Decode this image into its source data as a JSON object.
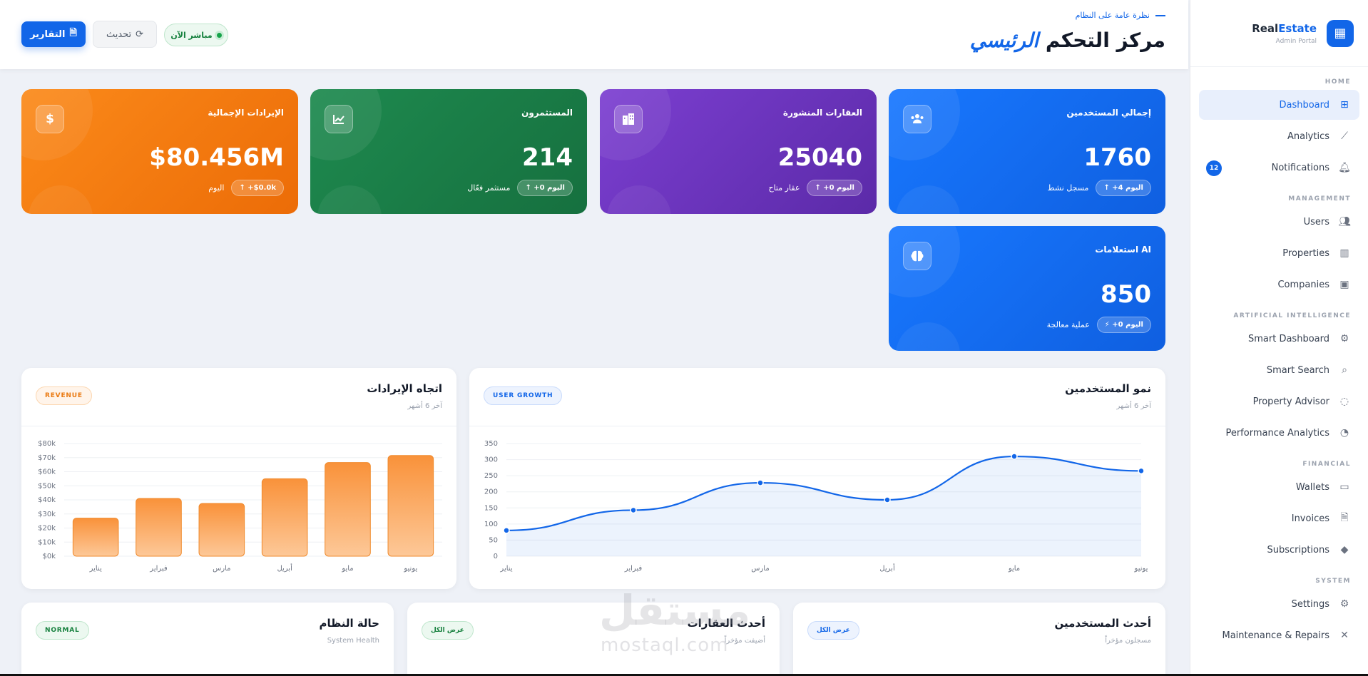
{
  "sidebar": {
    "brand_name_1": "Real",
    "brand_name_2": "Estate",
    "brand_sub": "Admin Portal",
    "sections": {
      "home": "HOME",
      "management": "MANAGEMENT",
      "ai": "ARTIFICIAL INTELLIGENCE",
      "financial": "FINANCIAL",
      "system": "SYSTEM"
    },
    "items": {
      "dashboard": "Dashboard",
      "analytics": "Analytics",
      "notifications": "Notifications",
      "notifications_count": "12",
      "users": "Users",
      "properties": "Properties",
      "companies": "Companies",
      "smart_dashboard": "Smart Dashboard",
      "smart_search": "Smart Search",
      "property_advisor": "Property Advisor",
      "performance_analytics": "Performance Analytics",
      "wallets": "Wallets",
      "invoices": "Invoices",
      "subscriptions": "Subscriptions",
      "settings": "Settings",
      "maintenance": "Maintenance & Repairs"
    }
  },
  "header": {
    "breadcrumb": "نظرة عامة على النظام",
    "title_main": "مركز التحكم",
    "title_accent": "الرئيسي",
    "reports_label": "التقارير",
    "refresh_label": "تحديث",
    "live_label": "مباشر الآن"
  },
  "stats": {
    "users": {
      "title": "إجمالي المستخدمين",
      "value": "1760",
      "pill": "↑ +4 اليوم",
      "note": "مسجل نشط"
    },
    "properties": {
      "title": "العقارات المنشورة",
      "value": "25040",
      "pill": "↑ +0 اليوم",
      "note": "عقار متاح"
    },
    "investors": {
      "title": "المستثمرون",
      "value": "214",
      "pill": "↑ +0 اليوم",
      "note": "مستثمر فعّال"
    },
    "revenue": {
      "title": "الإيرادات الإجمالية",
      "value": "$80.456M",
      "pill": "↑ +$0.0k",
      "note": "اليوم"
    },
    "ai": {
      "title": "استعلامات AI",
      "value": "850",
      "pill": "⚡ +0 اليوم",
      "note": "عملية معالجة"
    }
  },
  "user_growth": {
    "title": "نمو المستخدمين",
    "subtitle": "آخر 6 أشهر",
    "tag": "USER GROWTH"
  },
  "revenue_trend": {
    "title": "اتجاه الإيرادات",
    "subtitle": "آخر 6 أشهر",
    "tag": "REVENUE"
  },
  "bottom_cards": {
    "latest_users": {
      "title": "أحدث المستخدمين",
      "subtitle": "مسجلون مؤخراً",
      "tag": "عرض الكل"
    },
    "latest_properties": {
      "title": "أحدث العقارات",
      "subtitle": "أضيفت مؤخراً",
      "tag": "عرض الكل"
    },
    "system_status": {
      "title": "حالة النظام",
      "subtitle": "System Health",
      "tag": "NORMAL"
    }
  },
  "watermark": {
    "main": "مستقل",
    "sub": "mostaql.com"
  },
  "colors": {
    "accent": "#1266e8",
    "orange": "#fb8a1a",
    "purple": "#7c3fd1",
    "green": "#1e8a4f"
  },
  "chart_data": [
    {
      "type": "line",
      "title": "نمو المستخدمين",
      "categories": [
        "يناير",
        "فبراير",
        "مارس",
        "أبريل",
        "مايو",
        "يونيو"
      ],
      "values": [
        80,
        143,
        228,
        175,
        310,
        265
      ],
      "ylim": [
        0,
        350
      ],
      "yticks": [
        "0",
        "50",
        "100",
        "150",
        "200",
        "250",
        "300",
        "350"
      ],
      "grid": true
    },
    {
      "type": "bar",
      "title": "اتجاه الإيرادات",
      "categories": [
        "يناير",
        "فبراير",
        "مارس",
        "أبريل",
        "مايو",
        "يونيو"
      ],
      "values": [
        27000,
        41000,
        37500,
        55000,
        66500,
        71500
      ],
      "ylim": [
        0,
        80000
      ],
      "yticks": [
        "$0k",
        "$10k",
        "$20k",
        "$30k",
        "$40k",
        "$50k",
        "$60k",
        "$70k",
        "$80k"
      ],
      "grid": true
    }
  ]
}
